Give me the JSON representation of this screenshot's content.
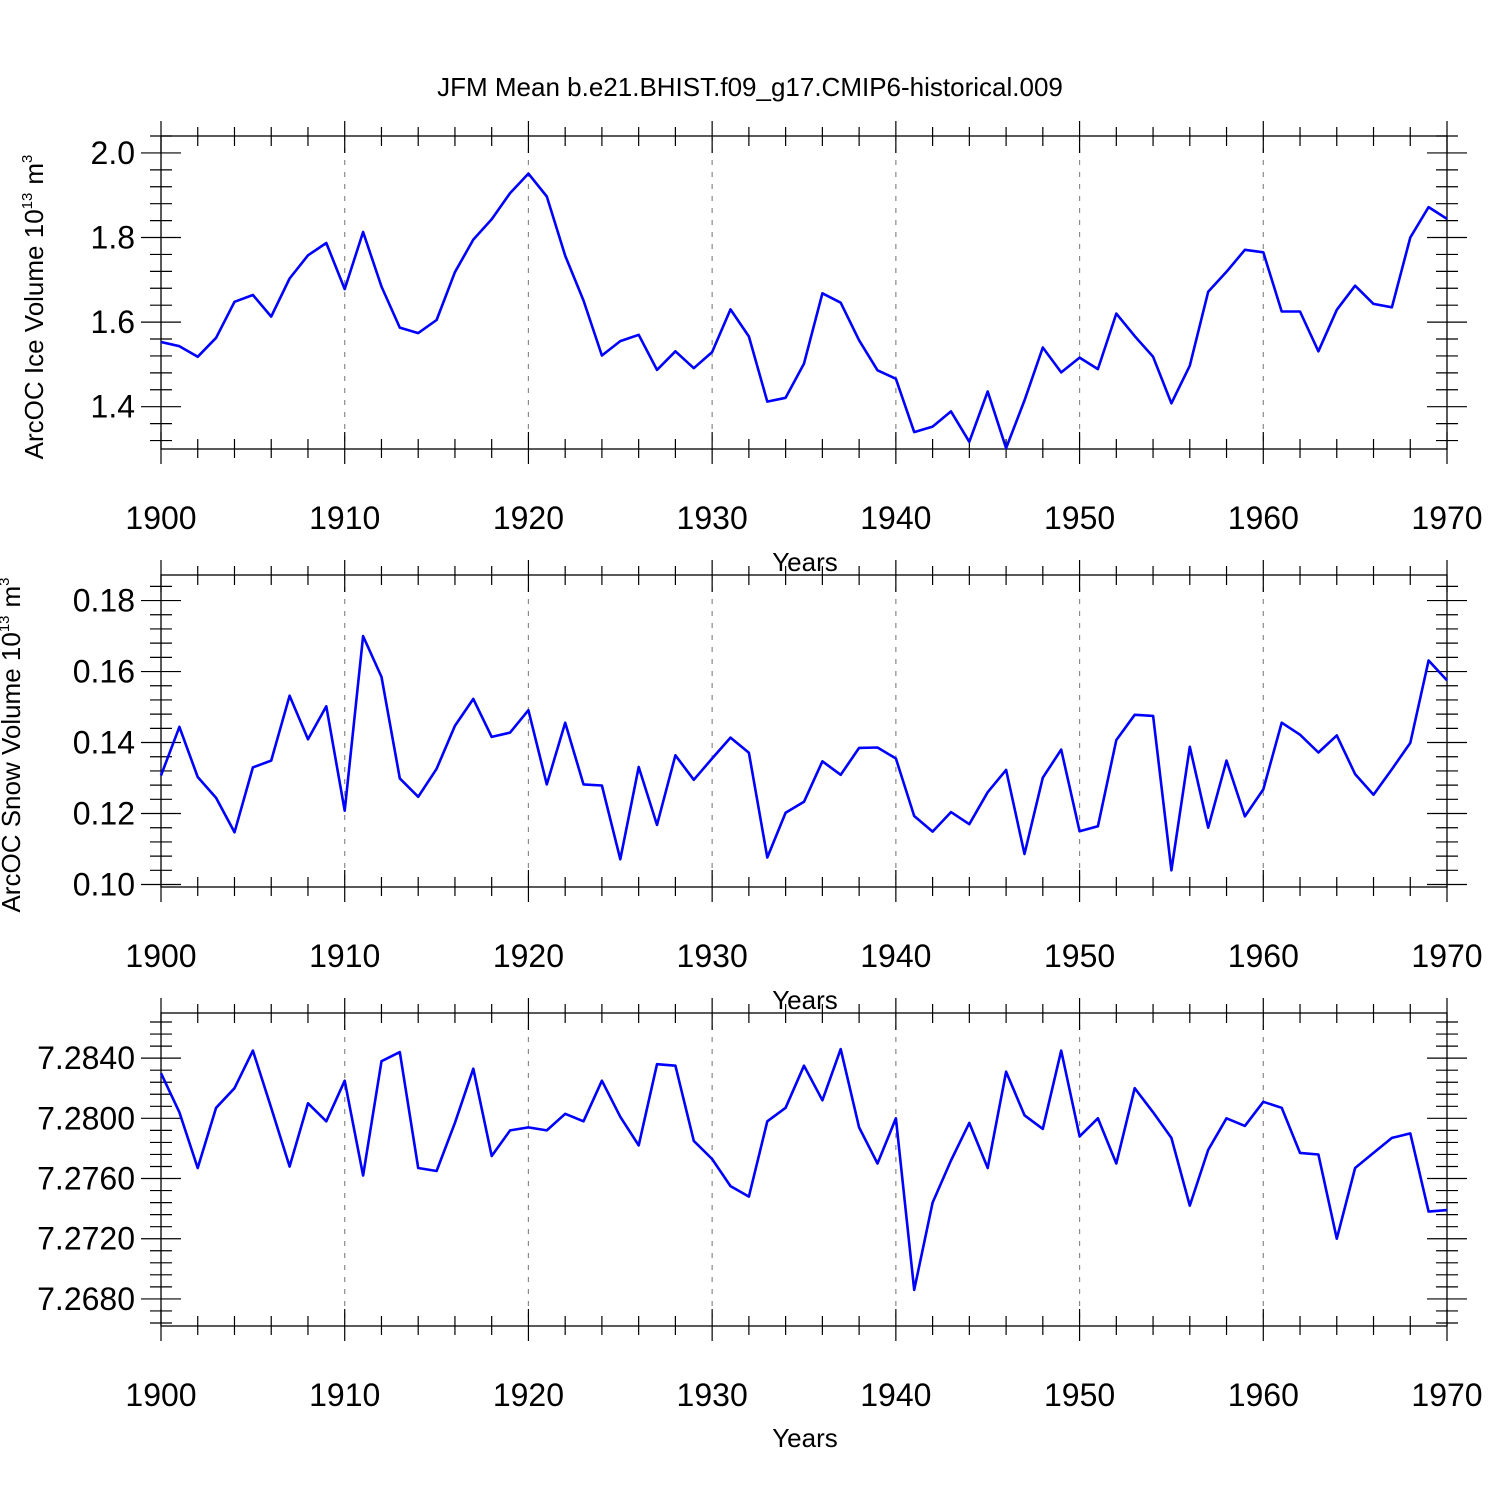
{
  "figure_title": "JFM Mean b.e21.BHIST.f09_g17.CMIP6-historical.009",
  "colors": {
    "series": "#0000ff",
    "grid": "#8a8a8a",
    "axis": "#000000"
  },
  "chart_data": [
    {
      "type": "line",
      "ylabel": "ArcOC Ice Volume 10",
      "ylabel_exp": "13",
      "ylabel_unit": "m",
      "ylabel_unit_exp": "3",
      "xlabel": "Years",
      "xlim": [
        1900,
        1970
      ],
      "ylim": [
        1.3,
        2.04
      ],
      "yticks": [
        1.4,
        1.6,
        1.8,
        2.0
      ],
      "ytick_labels": [
        "1.4",
        "1.6",
        "1.8",
        "2.0"
      ],
      "xticks": [
        1900,
        1910,
        1920,
        1930,
        1940,
        1950,
        1960,
        1970
      ],
      "xtick_labels": [
        "1900",
        "1910",
        "1920",
        "1930",
        "1940",
        "1950",
        "1960",
        "1970"
      ],
      "x_start": 1900,
      "values": [
        1.553,
        1.543,
        1.518,
        1.563,
        1.648,
        1.664,
        1.613,
        1.703,
        1.758,
        1.787,
        1.678,
        1.813,
        1.684,
        1.587,
        1.574,
        1.605,
        1.718,
        1.795,
        1.843,
        1.905,
        1.951,
        1.897,
        1.757,
        1.651,
        1.521,
        1.555,
        1.57,
        1.487,
        1.531,
        1.491,
        1.529,
        1.63,
        1.566,
        1.412,
        1.421,
        1.502,
        1.668,
        1.646,
        1.557,
        1.486,
        1.466,
        1.34,
        1.353,
        1.389,
        1.317,
        1.436,
        1.302,
        1.415,
        1.54,
        1.481,
        1.516,
        1.489,
        1.62,
        1.567,
        1.518,
        1.408,
        1.497,
        1.672,
        1.719,
        1.771,
        1.765,
        1.625,
        1.625,
        1.531,
        1.629,
        1.686,
        1.643,
        1.635,
        1.8,
        1.872,
        1.844
      ]
    },
    {
      "type": "line",
      "ylabel": "ArcOC Snow Volume 10",
      "ylabel_exp": "13",
      "ylabel_unit": "m",
      "ylabel_unit_exp": "3",
      "xlabel": "Years",
      "xlim": [
        1900,
        1970
      ],
      "ylim": [
        0.0993,
        0.1872
      ],
      "yticks": [
        0.1,
        0.12,
        0.14,
        0.16,
        0.18
      ],
      "ytick_labels": [
        "0.10",
        "0.12",
        "0.14",
        "0.16",
        "0.18"
      ],
      "xticks": [
        1900,
        1910,
        1920,
        1930,
        1940,
        1950,
        1960,
        1970
      ],
      "xtick_labels": [
        "1900",
        "1910",
        "1920",
        "1930",
        "1940",
        "1950",
        "1960",
        "1970"
      ],
      "x_start": 1900,
      "values": [
        0.1307,
        0.1444,
        0.1303,
        0.1244,
        0.1147,
        0.133,
        0.1349,
        0.1532,
        0.1409,
        0.1502,
        0.1208,
        0.17,
        0.1585,
        0.1299,
        0.1247,
        0.1326,
        0.1447,
        0.1523,
        0.1416,
        0.1428,
        0.1491,
        0.1282,
        0.1456,
        0.1282,
        0.1279,
        0.1071,
        0.1331,
        0.1168,
        0.1364,
        0.1295,
        0.1355,
        0.1414,
        0.1371,
        0.1076,
        0.1202,
        0.1233,
        0.1347,
        0.1309,
        0.1385,
        0.1386,
        0.1355,
        0.1193,
        0.1149,
        0.1204,
        0.117,
        0.126,
        0.1323,
        0.1086,
        0.1301,
        0.138,
        0.115,
        0.1164,
        0.1407,
        0.1478,
        0.1475,
        0.104,
        0.1388,
        0.116,
        0.1349,
        0.1192,
        0.1268,
        0.1456,
        0.1422,
        0.1372,
        0.142,
        0.1311,
        0.1253,
        0.1325,
        0.1399,
        0.1631,
        0.1575
      ]
    },
    {
      "type": "line",
      "ylabel": "",
      "xlabel": "Years",
      "xlim": [
        1900,
        1970
      ],
      "ylim": [
        7.2662,
        7.287
      ],
      "yticks": [
        7.268,
        7.272,
        7.276,
        7.28,
        7.284
      ],
      "ytick_labels": [
        "7.2680",
        "7.2720",
        "7.2760",
        "7.2800",
        "7.2840"
      ],
      "xticks": [
        1900,
        1910,
        1920,
        1930,
        1940,
        1950,
        1960,
        1970
      ],
      "xtick_labels": [
        "1900",
        "1910",
        "1920",
        "1930",
        "1940",
        "1950",
        "1960",
        "1970"
      ],
      "x_start": 1900,
      "values": [
        7.283,
        7.2804,
        7.2767,
        7.2807,
        7.282,
        7.2845,
        7.2807,
        7.2768,
        7.281,
        7.2798,
        7.2825,
        7.2762,
        7.2838,
        7.2844,
        7.2767,
        7.2765,
        7.2797,
        7.2833,
        7.2775,
        7.2792,
        7.2794,
        7.2792,
        7.2803,
        7.2798,
        7.2825,
        7.2801,
        7.2782,
        7.2836,
        7.2835,
        7.2785,
        7.2773,
        7.2755,
        7.2748,
        7.2798,
        7.2807,
        7.2835,
        7.2812,
        7.2846,
        7.2794,
        7.277,
        7.28,
        7.2686,
        7.2744,
        7.2772,
        7.2797,
        7.2767,
        7.2831,
        7.2802,
        7.2793,
        7.2845,
        7.2788,
        7.28,
        7.277,
        7.282,
        7.2804,
        7.2787,
        7.2742,
        7.2779,
        7.28,
        7.2795,
        7.2811,
        7.2807,
        7.2777,
        7.2776,
        7.272,
        7.2767,
        7.2777,
        7.2787,
        7.279,
        7.2738,
        7.2739
      ]
    }
  ]
}
